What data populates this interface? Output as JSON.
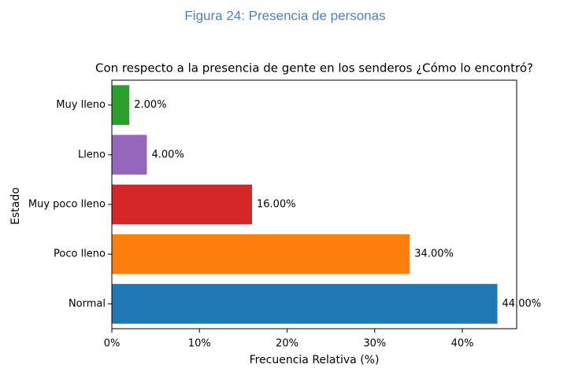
{
  "caption": "Figura 24: Presencia de personas",
  "chart_data": {
    "type": "barh",
    "title": "Con respecto a la presencia de gente en los senderos ¿Cómo lo encontró?",
    "xlabel": "Frecuencia Relativa (%)",
    "ylabel": "Estado",
    "categories": [
      "Normal",
      "Poco lleno",
      "Muy poco lleno",
      "Lleno",
      "Muy lleno"
    ],
    "values": [
      44,
      34,
      16,
      4,
      2
    ],
    "value_labels": [
      "44.00%",
      "34.00%",
      "16.00%",
      "4.00%",
      "2.00%"
    ],
    "colors": [
      "#1f77b4",
      "#ff7f0e",
      "#d62728",
      "#9467bd",
      "#2ca02c"
    ],
    "xlim": [
      0,
      46.2
    ],
    "xticks": [
      {
        "value": 0,
        "label": "0%"
      },
      {
        "value": 10,
        "label": "10%"
      },
      {
        "value": 20,
        "label": "20%"
      },
      {
        "value": 30,
        "label": "30%"
      },
      {
        "value": 40,
        "label": "40%"
      }
    ],
    "grid": false
  }
}
